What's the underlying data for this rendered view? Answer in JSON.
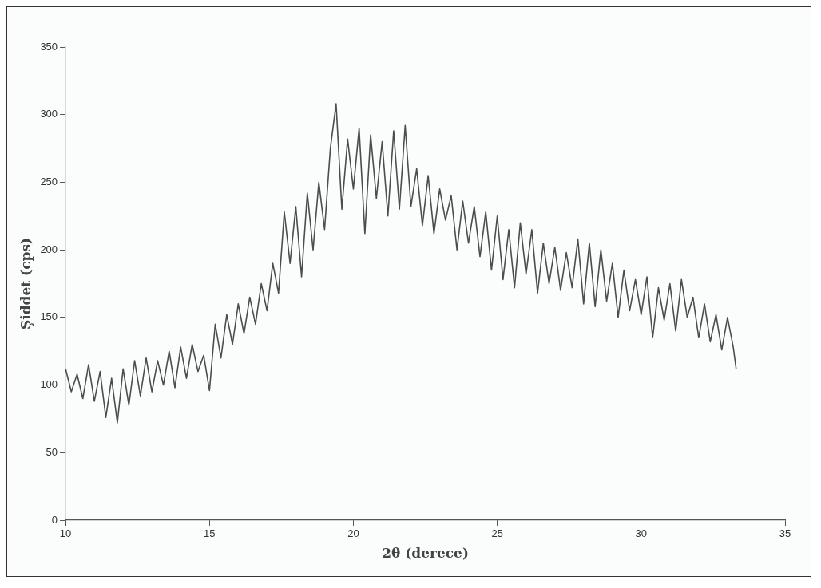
{
  "chart_data": {
    "type": "line",
    "xlabel": "2θ (derece)",
    "ylabel": "Şiddet (cps)",
    "xlim": [
      10,
      35
    ],
    "xticks": [
      10,
      15,
      20,
      25,
      30,
      35
    ],
    "ylim": [
      0,
      350
    ],
    "yticks": [
      0,
      50,
      100,
      150,
      200,
      250,
      300,
      350
    ],
    "grid": false,
    "marker": "none",
    "line_style": "solid",
    "series": [
      {
        "color": "#4d4d4d",
        "x": [
          10.0,
          10.2,
          10.4,
          10.6,
          10.8,
          11.0,
          11.2,
          11.4,
          11.6,
          11.8,
          12.0,
          12.2,
          12.4,
          12.6,
          12.8,
          13.0,
          13.2,
          13.4,
          13.6,
          13.8,
          14.0,
          14.2,
          14.4,
          14.6,
          14.8,
          15.0,
          15.2,
          15.4,
          15.6,
          15.8,
          16.0,
          16.2,
          16.4,
          16.6,
          16.8,
          17.0,
          17.2,
          17.4,
          17.6,
          17.8,
          18.0,
          18.2,
          18.4,
          18.6,
          18.8,
          19.0,
          19.2,
          19.4,
          19.6,
          19.8,
          20.0,
          20.2,
          20.4,
          20.6,
          20.8,
          21.0,
          21.2,
          21.4,
          21.6,
          21.8,
          22.0,
          22.2,
          22.4,
          22.6,
          22.8,
          23.0,
          23.2,
          23.4,
          23.6,
          23.8,
          24.0,
          24.2,
          24.4,
          24.6,
          24.8,
          25.0,
          25.2,
          25.4,
          25.6,
          25.8,
          26.0,
          26.2,
          26.4,
          26.6,
          26.8,
          27.0,
          27.2,
          27.4,
          27.6,
          27.8,
          28.0,
          28.2,
          28.4,
          28.6,
          28.8,
          29.0,
          29.2,
          29.4,
          29.6,
          29.8,
          30.0,
          30.2,
          30.4,
          30.6,
          30.8,
          31.0,
          31.2,
          31.4,
          31.6,
          31.8,
          32.0,
          32.2,
          32.4,
          32.6,
          32.8,
          33.0,
          33.2,
          33.3
        ],
        "values": [
          112,
          95,
          108,
          90,
          115,
          88,
          110,
          76,
          105,
          72,
          112,
          85,
          118,
          92,
          120,
          95,
          118,
          100,
          125,
          98,
          128,
          105,
          130,
          110,
          122,
          96,
          145,
          120,
          152,
          130,
          160,
          138,
          165,
          145,
          175,
          155,
          190,
          168,
          228,
          190,
          232,
          180,
          242,
          200,
          250,
          215,
          275,
          308,
          230,
          282,
          245,
          290,
          212,
          285,
          238,
          280,
          225,
          288,
          230,
          292,
          232,
          260,
          218,
          255,
          212,
          245,
          222,
          240,
          200,
          236,
          205,
          232,
          195,
          228,
          185,
          225,
          178,
          215,
          172,
          220,
          182,
          215,
          168,
          205,
          175,
          202,
          170,
          198,
          172,
          208,
          160,
          205,
          158,
          200,
          162,
          190,
          150,
          185,
          155,
          178,
          152,
          180,
          135,
          172,
          148,
          175,
          140,
          178,
          150,
          165,
          135,
          160,
          132,
          152,
          126,
          150,
          128,
          112
        ]
      }
    ]
  }
}
